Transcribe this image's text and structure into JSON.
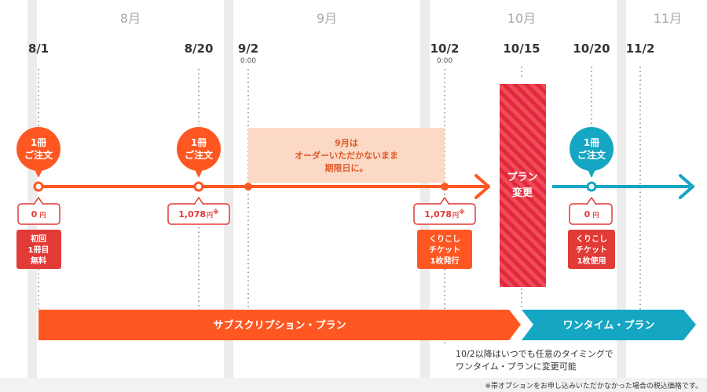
{
  "colors": {
    "orange": "#ff5722",
    "red": "#e23a36",
    "teal": "#14a6c2",
    "skip_fill": "#fcd9c5",
    "month_band": "#ececec",
    "footer_band": "#f2f2f2"
  },
  "months": [
    "8月",
    "9月",
    "10月",
    "11月"
  ],
  "dates": [
    {
      "date": "8/1"
    },
    {
      "date": "8/20"
    },
    {
      "date": "9/2",
      "time": "0:00"
    },
    {
      "date": "10/2",
      "time": "0:00"
    },
    {
      "date": "10/15"
    },
    {
      "date": "10/20"
    },
    {
      "date": "11/2"
    }
  ],
  "order_bubbles": [
    {
      "line1": "1冊",
      "line2": "ご注文"
    },
    {
      "line1": "1冊",
      "line2": "ご注文"
    },
    {
      "line1": "1冊",
      "line2": "ご注文"
    }
  ],
  "price_tags": [
    {
      "amount": "0",
      "unit": "円",
      "note": ""
    },
    {
      "amount": "1,078",
      "unit": "円",
      "note": "※"
    },
    {
      "amount": "1,078",
      "unit": "円",
      "note": "※"
    },
    {
      "amount": "0",
      "unit": "円",
      "note": ""
    }
  ],
  "badges": [
    {
      "lines": [
        "初回",
        "1冊目",
        "無料"
      ]
    },
    {
      "lines": [
        "くりこし",
        "チケット",
        "1枚発行"
      ]
    },
    {
      "lines": [
        "くりこし",
        "チケット",
        "1枚使用"
      ]
    }
  ],
  "skip_box": {
    "lines": [
      "9月は",
      "オーダーいただかないまま",
      "期限日に。"
    ]
  },
  "plan_change": {
    "lines": [
      "プラン",
      "変更"
    ]
  },
  "plans": {
    "subscription": "サブスクリプション・プラン",
    "one_time": "ワンタイム・プラン"
  },
  "note": {
    "lines": [
      "10/2以降はいつでも任意のタイミングで",
      "ワンタイム・プランに変更可能"
    ]
  },
  "footnote": "※帯オプションをお申し込みいただかなかった場合の税込価格です。"
}
